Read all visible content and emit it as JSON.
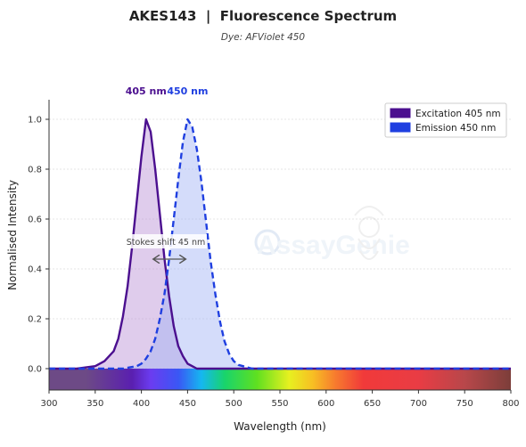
{
  "title": "AKES143  |  Fluorescence Spectrum",
  "subtitle": "Dye: AFViolet 450",
  "watermark": "AssayGenie",
  "chart_data": {
    "type": "area",
    "xlabel": "Wavelength (nm)",
    "ylabel": "Normalised Intensity",
    "xlim": [
      300,
      800
    ],
    "ylim": [
      0,
      1.05
    ],
    "x_ticks": [
      "300",
      "350",
      "400",
      "450",
      "500",
      "550",
      "600",
      "650",
      "700",
      "750",
      "800"
    ],
    "y_ticks": [
      "0.0",
      "0.2",
      "0.4",
      "0.6",
      "0.8",
      "1.0"
    ],
    "grid": true,
    "legend_position": "top-right",
    "peak_labels": [
      "405 nm",
      "450 nm"
    ],
    "annotation": "Stokes shift  45 nm",
    "series": [
      {
        "name": "Excitation  405 nm",
        "color": "#4b0f8f",
        "fill": "#b98fd4",
        "line_style": "solid",
        "peak": 405,
        "x": [
          300,
          330,
          350,
          360,
          370,
          375,
          380,
          385,
          390,
          395,
          400,
          405,
          410,
          415,
          420,
          425,
          430,
          435,
          440,
          445,
          450,
          455,
          460,
          470,
          480,
          500,
          550,
          600,
          800
        ],
        "y": [
          0.0,
          0.0,
          0.01,
          0.03,
          0.07,
          0.12,
          0.21,
          0.33,
          0.49,
          0.67,
          0.85,
          1.0,
          0.95,
          0.8,
          0.62,
          0.44,
          0.29,
          0.17,
          0.09,
          0.05,
          0.02,
          0.01,
          0.0,
          0.0,
          0.0,
          0.0,
          0.0,
          0.0,
          0.0
        ]
      },
      {
        "name": "Emission  450 nm",
        "color": "#1f3fe0",
        "fill": "#9fb2f3",
        "line_style": "dashed",
        "peak": 450,
        "x": [
          300,
          350,
          380,
          395,
          400,
          405,
          410,
          415,
          420,
          425,
          430,
          435,
          440,
          445,
          450,
          455,
          460,
          465,
          470,
          475,
          480,
          485,
          490,
          495,
          500,
          505,
          510,
          520,
          530,
          550,
          600,
          800
        ],
        "y": [
          0.0,
          0.0,
          0.0,
          0.01,
          0.02,
          0.04,
          0.07,
          0.12,
          0.2,
          0.3,
          0.44,
          0.6,
          0.76,
          0.91,
          1.0,
          0.97,
          0.88,
          0.75,
          0.59,
          0.43,
          0.3,
          0.19,
          0.11,
          0.06,
          0.03,
          0.015,
          0.01,
          0.0,
          0.0,
          0.0,
          0.0,
          0.0
        ]
      }
    ]
  }
}
